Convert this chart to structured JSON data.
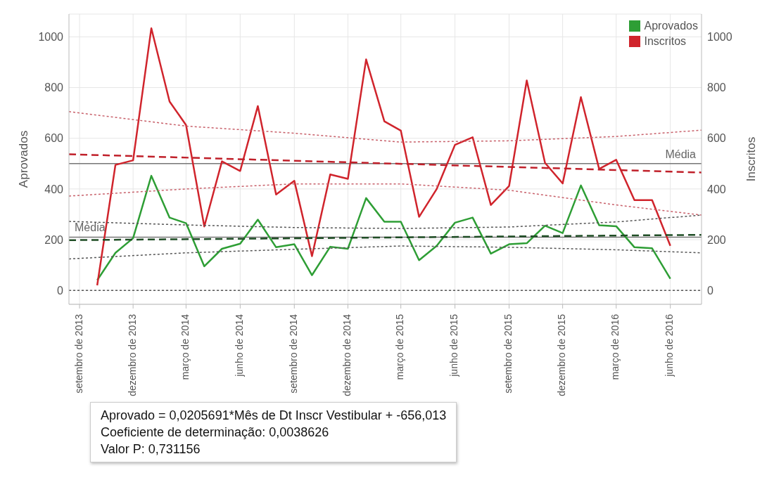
{
  "chart_data": {
    "type": "line",
    "ylabel": "Aprovados",
    "y2label": "Inscritos",
    "x": [
      "2013-10",
      "2013-11",
      "2013-12",
      "2014-01",
      "2014-02",
      "2014-03",
      "2014-04",
      "2014-05",
      "2014-06",
      "2014-07",
      "2014-08",
      "2014-09",
      "2014-10",
      "2014-11",
      "2014-12",
      "2015-01",
      "2015-02",
      "2015-03",
      "2015-04",
      "2015-05",
      "2015-06",
      "2015-07",
      "2015-08",
      "2015-09",
      "2015-10",
      "2015-11",
      "2015-12",
      "2016-01",
      "2016-02",
      "2016-03",
      "2016-04",
      "2016-05",
      "2016-06"
    ],
    "series": [
      {
        "name": "Aprovados",
        "color": "#2e9e35",
        "values": [
          40,
          148,
          206,
          452,
          287,
          265,
          95,
          164,
          184,
          279,
          170,
          182,
          60,
          172,
          164,
          364,
          271,
          271,
          119,
          176,
          267,
          287,
          145,
          182,
          186,
          255,
          226,
          414,
          257,
          253,
          170,
          166,
          46
        ]
      },
      {
        "name": "Inscritos",
        "color": "#d0242c",
        "axis": "y2",
        "values": [
          20,
          495,
          513,
          1034,
          745,
          652,
          252,
          509,
          471,
          727,
          378,
          432,
          135,
          457,
          440,
          911,
          667,
          630,
          290,
          400,
          574,
          604,
          337,
          412,
          828,
          503,
          422,
          762,
          479,
          515,
          356,
          356,
          176
        ]
      },
      {
        "type": "line",
        "color": "#1f4d25",
        "line_style": "dashed",
        "x": [
          "2013-08-14",
          "2016-07-24"
        ],
        "values": [
          198,
          219
        ]
      },
      {
        "type": "line",
        "color": "#555555",
        "line_style": "dotted",
        "x": [
          "2013-08-14",
          "2014-03",
          "2014-09",
          "2015-03",
          "2015-09",
          "2016-03",
          "2016-07-24"
        ],
        "values": [
          272,
          258,
          248,
          244,
          250,
          270,
          297
        ]
      },
      {
        "type": "line",
        "color": "#555555",
        "line_style": "dotted",
        "x": [
          "2013-08-14",
          "2014-03",
          "2014-09",
          "2015-03",
          "2015-09",
          "2016-03",
          "2016-07-24"
        ],
        "values": [
          124,
          148,
          162,
          175,
          170,
          160,
          148
        ]
      },
      {
        "type": "line",
        "color": "#c0202a",
        "line_style": "dashed",
        "axis": "y2",
        "x": [
          "2013-08-14",
          "2016-07-24"
        ],
        "values": [
          537,
          465
        ]
      },
      {
        "type": "line",
        "color": "#c8606a",
        "line_style": "dotted",
        "axis": "y2",
        "x": [
          "2013-08-14",
          "2014-03",
          "2014-09",
          "2015-03",
          "2015-09",
          "2016-03",
          "2016-07-24"
        ],
        "values": [
          705,
          648,
          620,
          585,
          590,
          607,
          632
        ]
      },
      {
        "type": "line",
        "color": "#c8606a",
        "line_style": "dotted",
        "axis": "y2",
        "x": [
          "2013-08-14",
          "2014-03",
          "2014-09",
          "2015-03",
          "2015-09",
          "2016-03",
          "2016-07-24"
        ],
        "values": [
          372,
          400,
          420,
          420,
          395,
          337,
          297
        ]
      }
    ],
    "xlim": [
      "2013-08-14",
      "2016-07-24"
    ],
    "xticks": [
      {
        "value": "2013-09",
        "label": "setembro de 2013"
      },
      {
        "value": "2013-12",
        "label": "dezembro de 2013"
      },
      {
        "value": "2014-03",
        "label": "março de 2014"
      },
      {
        "value": "2014-06",
        "label": "junho de 2014"
      },
      {
        "value": "2014-09",
        "label": "setembro de 2014"
      },
      {
        "value": "2014-12",
        "label": "dezembro de 2014"
      },
      {
        "value": "2015-03",
        "label": "março de 2015"
      },
      {
        "value": "2015-06",
        "label": "junho de 2015"
      },
      {
        "value": "2015-09",
        "label": "setembro de 2015"
      },
      {
        "value": "2015-12",
        "label": "dezembro de 2015"
      },
      {
        "value": "2016-03",
        "label": "março de 2016"
      },
      {
        "value": "2016-06",
        "label": "junho de 2016"
      }
    ],
    "ylim": [
      -55,
      1090
    ],
    "yticks": [
      0,
      200,
      400,
      600,
      800,
      1000
    ],
    "y2lim": [
      -55,
      1090
    ],
    "y2ticks": [
      0,
      200,
      400,
      600,
      800,
      1000
    ],
    "ref_lines": [
      {
        "axis": "y",
        "value": 210,
        "label": "Média",
        "color": "#777777"
      },
      {
        "axis": "y2",
        "value": 500,
        "label": "Média",
        "color": "#777777"
      },
      {
        "axis": "y",
        "value": 0,
        "color": "#555555",
        "line_style": "dotted"
      }
    ],
    "grid": true,
    "legend": "top right",
    "line_style": "solid",
    "annotations": [
      "Aprovado = 0,0205691*Mês de Dt Inscr Vestibular + -656,013",
      "Coeficiente de determinação: 0,0038626",
      "Valor P: 0,731156"
    ]
  }
}
